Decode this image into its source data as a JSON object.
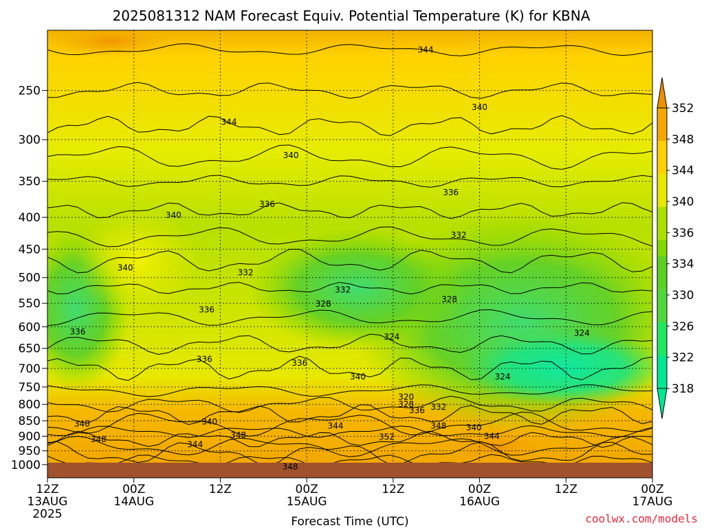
{
  "colors": {
    "surface": "#A0522D",
    "contour": "#000000",
    "grid": "#000000",
    "footer": "#E8283C"
  },
  "footer": {
    "source": "coolwx.com/models"
  },
  "chart_data": {
    "type": "heatmap",
    "title": "2025081312 NAM Forecast Equiv. Potential Temperature (K) for KBNA",
    "xlabel": "Forecast Time (UTC)",
    "ylabel": "",
    "x_ticks": [
      {
        "label": [
          "12Z",
          "13AUG",
          "2025"
        ],
        "hour": 0
      },
      {
        "label": [
          "00Z",
          "14AUG"
        ],
        "hour": 12
      },
      {
        "label": [
          "12Z"
        ],
        "hour": 24
      },
      {
        "label": [
          "00Z",
          "15AUG"
        ],
        "hour": 36
      },
      {
        "label": [
          "12Z"
        ],
        "hour": 48
      },
      {
        "label": [
          "00Z",
          "16AUG"
        ],
        "hour": 60
      },
      {
        "label": [
          "12Z"
        ],
        "hour": 72
      },
      {
        "label": [
          "00Z",
          "17AUG"
        ],
        "hour": 84
      }
    ],
    "xlim": [
      0,
      84
    ],
    "y_ticks": [
      250,
      300,
      350,
      400,
      450,
      500,
      550,
      600,
      650,
      700,
      750,
      800,
      850,
      900,
      950,
      1000
    ],
    "ylim": [
      1050,
      200
    ],
    "y_scale": "log",
    "grid": true,
    "colorbar": {
      "position": "right",
      "stops": [
        {
          "value": 318,
          "color": "#00E890"
        },
        {
          "value": 322,
          "color": "#20E860"
        },
        {
          "value": 326,
          "color": "#50D83A"
        },
        {
          "value": 330,
          "color": "#5CD020"
        },
        {
          "value": 334,
          "color": "#80D800"
        },
        {
          "value": 336,
          "color": "#AAE000"
        },
        {
          "value": 340,
          "color": "#E8E800"
        },
        {
          "value": 344,
          "color": "#FFD000"
        },
        {
          "value": 348,
          "color": "#F5A800"
        },
        {
          "value": 352,
          "color": "#EE9000"
        }
      ],
      "labels": [
        352,
        348,
        344,
        340,
        336,
        334,
        330,
        326,
        322,
        318
      ]
    },
    "contour_labels": [
      {
        "text": "344",
        "hour": 52.5,
        "p": 215
      },
      {
        "text": "340",
        "hour": 60.0,
        "p": 266
      },
      {
        "text": "344",
        "hour": 25.2,
        "p": 281
      },
      {
        "text": "340",
        "hour": 33.8,
        "p": 318
      },
      {
        "text": "336",
        "hour": 56.0,
        "p": 365
      },
      {
        "text": "336",
        "hour": 30.5,
        "p": 381
      },
      {
        "text": "340",
        "hour": 17.5,
        "p": 397
      },
      {
        "text": "332",
        "hour": 57.1,
        "p": 427
      },
      {
        "text": "340",
        "hour": 10.8,
        "p": 482
      },
      {
        "text": "332",
        "hour": 27.5,
        "p": 491
      },
      {
        "text": "332",
        "hour": 41.0,
        "p": 523
      },
      {
        "text": "328",
        "hour": 55.8,
        "p": 542
      },
      {
        "text": "328",
        "hour": 38.3,
        "p": 551
      },
      {
        "text": "336",
        "hour": 22.1,
        "p": 563
      },
      {
        "text": "336",
        "hour": 4.2,
        "p": 611
      },
      {
        "text": "324",
        "hour": 74.2,
        "p": 614
      },
      {
        "text": "324",
        "hour": 47.8,
        "p": 623
      },
      {
        "text": "336",
        "hour": 21.8,
        "p": 677
      },
      {
        "text": "336",
        "hour": 35.0,
        "p": 686
      },
      {
        "text": "324",
        "hour": 63.2,
        "p": 722
      },
      {
        "text": "340",
        "hour": 43.1,
        "p": 722
      },
      {
        "text": "320",
        "hour": 49.8,
        "p": 778
      },
      {
        "text": "328",
        "hour": 49.8,
        "p": 800
      },
      {
        "text": "336",
        "hour": 51.3,
        "p": 818
      },
      {
        "text": "332",
        "hour": 54.3,
        "p": 808
      },
      {
        "text": "340",
        "hour": 4.8,
        "p": 860
      },
      {
        "text": "340",
        "hour": 22.5,
        "p": 853
      },
      {
        "text": "344",
        "hour": 40.0,
        "p": 866
      },
      {
        "text": "348",
        "hour": 54.3,
        "p": 866
      },
      {
        "text": "340",
        "hour": 59.2,
        "p": 872
      },
      {
        "text": "344",
        "hour": 61.7,
        "p": 900
      },
      {
        "text": "348",
        "hour": 7.1,
        "p": 910
      },
      {
        "text": "348",
        "hour": 26.5,
        "p": 897
      },
      {
        "text": "352",
        "hour": 47.1,
        "p": 902
      },
      {
        "text": "344",
        "hour": 20.5,
        "p": 928
      },
      {
        "text": "348",
        "hour": 33.7,
        "p": 1008
      }
    ]
  }
}
